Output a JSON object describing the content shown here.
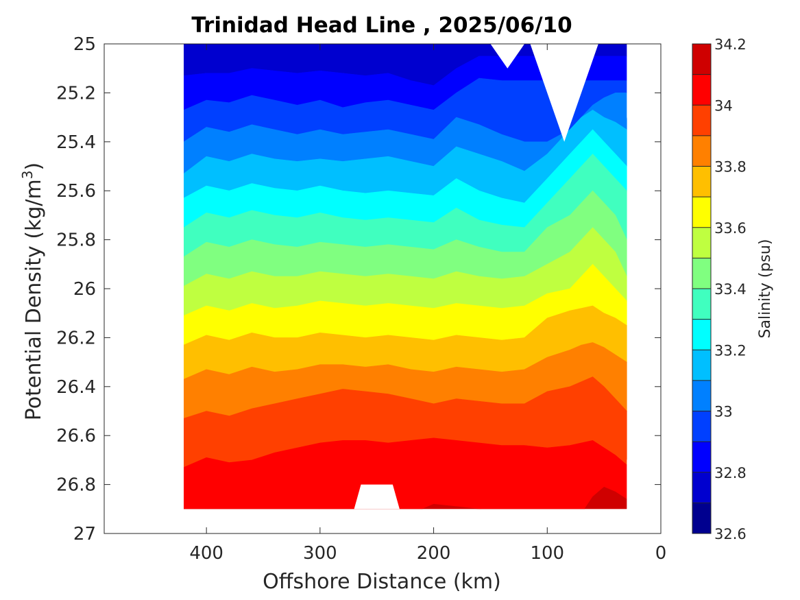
{
  "chart_data": {
    "type": "heatmap",
    "subtype": "filled-contour",
    "title": "Trinidad Head Line , 2025/06/10",
    "xlabel": "Offshore Distance (km)",
    "ylabel_prefix": "Potential Density (kg/m",
    "ylabel_superscript": "3",
    "ylabel_suffix": ")",
    "x_reversed": true,
    "xlim": [
      0,
      490
    ],
    "xticks": [
      400,
      300,
      200,
      100,
      0
    ],
    "xtick_labels": [
      "400",
      "300",
      "200",
      "100",
      "0"
    ],
    "y_reversed": true,
    "ylim": [
      25,
      27
    ],
    "yticks": [
      25,
      25.2,
      25.4,
      25.6,
      25.8,
      26,
      26.2,
      26.4,
      26.6,
      26.8,
      27
    ],
    "ytick_labels": [
      "25",
      "25.2",
      "25.4",
      "25.6",
      "25.8",
      "26",
      "26.2",
      "26.4",
      "26.6",
      "26.8",
      "27"
    ],
    "grid": false,
    "colorbar": {
      "label": "Salinity (psu)",
      "range": [
        32.6,
        34.2
      ],
      "step": 0.1,
      "tick_values": [
        32.6,
        32.8,
        33,
        33.2,
        33.4,
        33.6,
        33.8,
        34,
        34.2
      ],
      "tick_labels": [
        "32.6",
        "32.8",
        "33",
        "33.2",
        "33.4",
        "33.6",
        "33.8",
        "34",
        "34.2"
      ],
      "colors": [
        "#00008f",
        "#0000cf",
        "#0000ff",
        "#0040ff",
        "#0080ff",
        "#00bfff",
        "#00ffff",
        "#40ffbf",
        "#80ff80",
        "#bfff40",
        "#ffff00",
        "#ffbf00",
        "#ff8000",
        "#ff4000",
        "#ff0000",
        "#cf0000"
      ]
    },
    "isoline_density_by_salinity": {
      "distances_km": [
        420,
        400,
        380,
        360,
        340,
        320,
        300,
        280,
        260,
        240,
        220,
        200,
        180,
        160,
        140,
        120,
        100,
        80,
        70,
        60,
        50,
        40,
        30
      ],
      "levels": [
        {
          "salinity": 32.8,
          "density": [
            25.13,
            25.12,
            25.12,
            25.1,
            25.11,
            25.12,
            25.11,
            25.12,
            25.13,
            25.12,
            25.15,
            25.17,
            25.1,
            25.05,
            25.05,
            25.05,
            25.05,
            25.05,
            25.05,
            25.05,
            25.05,
            25.05,
            25.05
          ]
        },
        {
          "salinity": 32.9,
          "density": [
            25.27,
            25.23,
            25.24,
            25.21,
            25.23,
            25.25,
            25.23,
            25.26,
            25.24,
            25.23,
            25.25,
            25.27,
            25.2,
            25.14,
            25.15,
            25.15,
            25.15,
            25.15,
            25.15,
            25.15,
            25.15,
            25.15,
            25.15
          ]
        },
        {
          "salinity": 33.0,
          "density": [
            25.4,
            25.34,
            25.36,
            25.33,
            25.35,
            25.37,
            25.35,
            25.37,
            25.36,
            25.35,
            25.37,
            25.39,
            25.3,
            25.33,
            25.37,
            25.4,
            25.4,
            25.35,
            25.3,
            25.25,
            25.22,
            25.2,
            25.2
          ]
        },
        {
          "salinity": 33.1,
          "density": [
            25.53,
            25.46,
            25.48,
            25.45,
            25.47,
            25.48,
            25.47,
            25.48,
            25.47,
            25.46,
            25.48,
            25.5,
            25.42,
            25.45,
            25.48,
            25.52,
            25.45,
            25.35,
            25.3,
            25.27,
            25.3,
            25.32,
            25.35
          ]
        },
        {
          "salinity": 33.2,
          "density": [
            25.63,
            25.58,
            25.6,
            25.57,
            25.59,
            25.6,
            25.58,
            25.6,
            25.61,
            25.6,
            25.61,
            25.62,
            25.55,
            25.6,
            25.63,
            25.65,
            25.55,
            25.45,
            25.4,
            25.35,
            25.4,
            25.45,
            25.5
          ]
        },
        {
          "salinity": 33.3,
          "density": [
            25.75,
            25.69,
            25.71,
            25.68,
            25.7,
            25.71,
            25.69,
            25.71,
            25.72,
            25.71,
            25.72,
            25.73,
            25.67,
            25.72,
            25.74,
            25.75,
            25.65,
            25.55,
            25.5,
            25.45,
            25.5,
            25.55,
            25.6
          ]
        },
        {
          "salinity": 33.4,
          "density": [
            25.87,
            25.81,
            25.83,
            25.8,
            25.82,
            25.83,
            25.81,
            25.82,
            25.83,
            25.82,
            25.83,
            25.84,
            25.8,
            25.83,
            25.85,
            25.85,
            25.75,
            25.7,
            25.65,
            25.6,
            25.65,
            25.7,
            25.8
          ]
        },
        {
          "salinity": 33.5,
          "density": [
            25.99,
            25.94,
            25.96,
            25.93,
            25.95,
            25.95,
            25.93,
            25.94,
            25.95,
            25.94,
            25.95,
            25.96,
            25.93,
            25.95,
            25.96,
            25.95,
            25.9,
            25.85,
            25.8,
            25.75,
            25.8,
            25.85,
            25.95
          ]
        },
        {
          "salinity": 33.6,
          "density": [
            26.11,
            26.07,
            26.09,
            26.06,
            26.08,
            26.07,
            26.05,
            26.06,
            26.07,
            26.06,
            26.07,
            26.08,
            26.06,
            26.07,
            26.08,
            26.07,
            26.02,
            26.0,
            25.95,
            25.9,
            25.95,
            26.0,
            26.05
          ]
        },
        {
          "salinity": 33.7,
          "density": [
            26.23,
            26.19,
            26.21,
            26.18,
            26.2,
            26.2,
            26.18,
            26.19,
            26.2,
            26.19,
            26.2,
            26.21,
            26.19,
            26.2,
            26.21,
            26.2,
            26.12,
            26.09,
            26.08,
            26.07,
            26.1,
            26.12,
            26.15
          ]
        },
        {
          "salinity": 33.8,
          "density": [
            26.37,
            26.33,
            26.35,
            26.32,
            26.34,
            26.33,
            26.31,
            26.31,
            26.32,
            26.31,
            26.33,
            26.34,
            26.32,
            26.33,
            26.34,
            26.33,
            26.28,
            26.25,
            26.23,
            26.22,
            26.24,
            26.27,
            26.3
          ]
        },
        {
          "salinity": 33.9,
          "density": [
            26.53,
            26.5,
            26.52,
            26.49,
            26.47,
            26.45,
            26.43,
            26.41,
            26.42,
            26.43,
            26.45,
            26.47,
            26.45,
            26.46,
            26.47,
            26.47,
            26.42,
            26.4,
            26.38,
            26.36,
            26.4,
            26.45,
            26.5
          ]
        },
        {
          "salinity": 34.0,
          "density": [
            26.73,
            26.69,
            26.71,
            26.7,
            26.67,
            26.65,
            26.63,
            26.62,
            26.62,
            26.63,
            26.62,
            26.61,
            26.62,
            26.63,
            26.64,
            26.64,
            26.65,
            26.64,
            26.63,
            26.62,
            26.65,
            26.68,
            26.72
          ]
        },
        {
          "salinity": 34.1,
          "density": [
            26.92,
            26.9,
            26.91,
            26.91,
            26.92,
            26.92,
            26.9,
            26.9,
            26.9,
            26.92,
            26.92,
            26.88,
            26.89,
            26.9,
            26.91,
            26.91,
            26.92,
            26.92,
            26.92,
            26.85,
            26.81,
            26.83,
            26.86
          ]
        }
      ]
    },
    "blank_regions": [
      {
        "description": "no data gap at top near-shore",
        "x_km": [
          55,
          115
        ],
        "density": [
          25.0,
          25.4
        ]
      },
      {
        "description": "notch at top",
        "x_km": [
          120,
          150
        ],
        "density": [
          25.0,
          25.1
        ]
      },
      {
        "description": "notch at bottom",
        "x_km": [
          230,
          270
        ],
        "density": [
          26.8,
          26.9
        ]
      }
    ]
  }
}
